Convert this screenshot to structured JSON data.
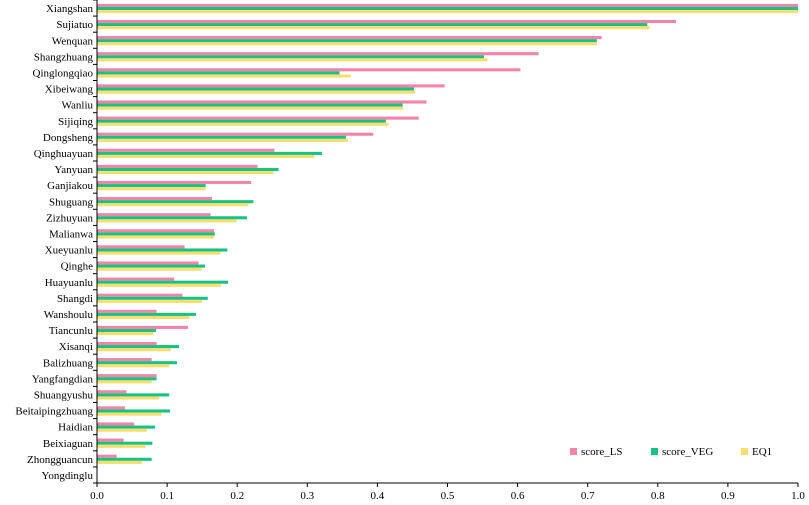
{
  "chart_data": {
    "type": "bar",
    "orientation": "horizontal",
    "title": "",
    "xlabel": "",
    "ylabel": "",
    "xlim": [
      0,
      1.0
    ],
    "xticks": [
      "0.0",
      "0.1",
      "0.2",
      "0.3",
      "0.4",
      "0.5",
      "0.6",
      "0.7",
      "0.8",
      "0.9",
      "1.0"
    ],
    "grid": false,
    "legend_position": "bottom-right",
    "categories": [
      "Xiangshan",
      "Sujiatuo",
      "Wenquan",
      "Shangzhuang",
      "Qinglongqiao",
      "Xibeiwang",
      "Wanliu",
      "Sijiqing",
      "Dongsheng",
      "Qinghuayuan",
      "Yanyuan",
      "Ganjiakou",
      "Shuguang",
      "Zizhuyuan",
      "Malianwa",
      "Xueyuanlu",
      "Qinghe",
      "Huayuanlu",
      "Shangdi",
      "Wanshoulu",
      "Tiancunlu",
      "Xisanqi",
      "Balizhuang",
      "Yangfangdian",
      "Shuangyushu",
      "Beitaipingzhuang",
      "Haidian",
      "Beixiaguan",
      "Zhongguancun",
      "Yongdinglu"
    ],
    "series": [
      {
        "name": "score_LS",
        "color": "#f283a9",
        "values": [
          1.0,
          0.826,
          0.72,
          0.63,
          0.604,
          0.496,
          0.47,
          0.459,
          0.394,
          0.253,
          0.229,
          0.22,
          0.164,
          0.162,
          0.167,
          0.125,
          0.145,
          0.11,
          0.122,
          0.085,
          0.13,
          0.085,
          0.078,
          0.085,
          0.042,
          0.04,
          0.053,
          0.038,
          0.028,
          0.0
        ]
      },
      {
        "name": "score_VEG",
        "color": "#17c283",
        "values": [
          1.0,
          0.785,
          0.713,
          0.552,
          0.346,
          0.452,
          0.436,
          0.412,
          0.355,
          0.321,
          0.259,
          0.155,
          0.223,
          0.214,
          0.168,
          0.186,
          0.154,
          0.187,
          0.158,
          0.141,
          0.084,
          0.117,
          0.114,
          0.085,
          0.103,
          0.104,
          0.083,
          0.079,
          0.078,
          0.0
        ]
      },
      {
        "name": "EQ1",
        "color": "#f7de6e",
        "values": [
          1.0,
          0.788,
          0.713,
          0.557,
          0.362,
          0.454,
          0.437,
          0.416,
          0.358,
          0.31,
          0.252,
          0.155,
          0.216,
          0.199,
          0.167,
          0.176,
          0.149,
          0.177,
          0.15,
          0.132,
          0.08,
          0.105,
          0.103,
          0.078,
          0.089,
          0.092,
          0.071,
          0.069,
          0.064,
          0.0
        ]
      }
    ]
  }
}
